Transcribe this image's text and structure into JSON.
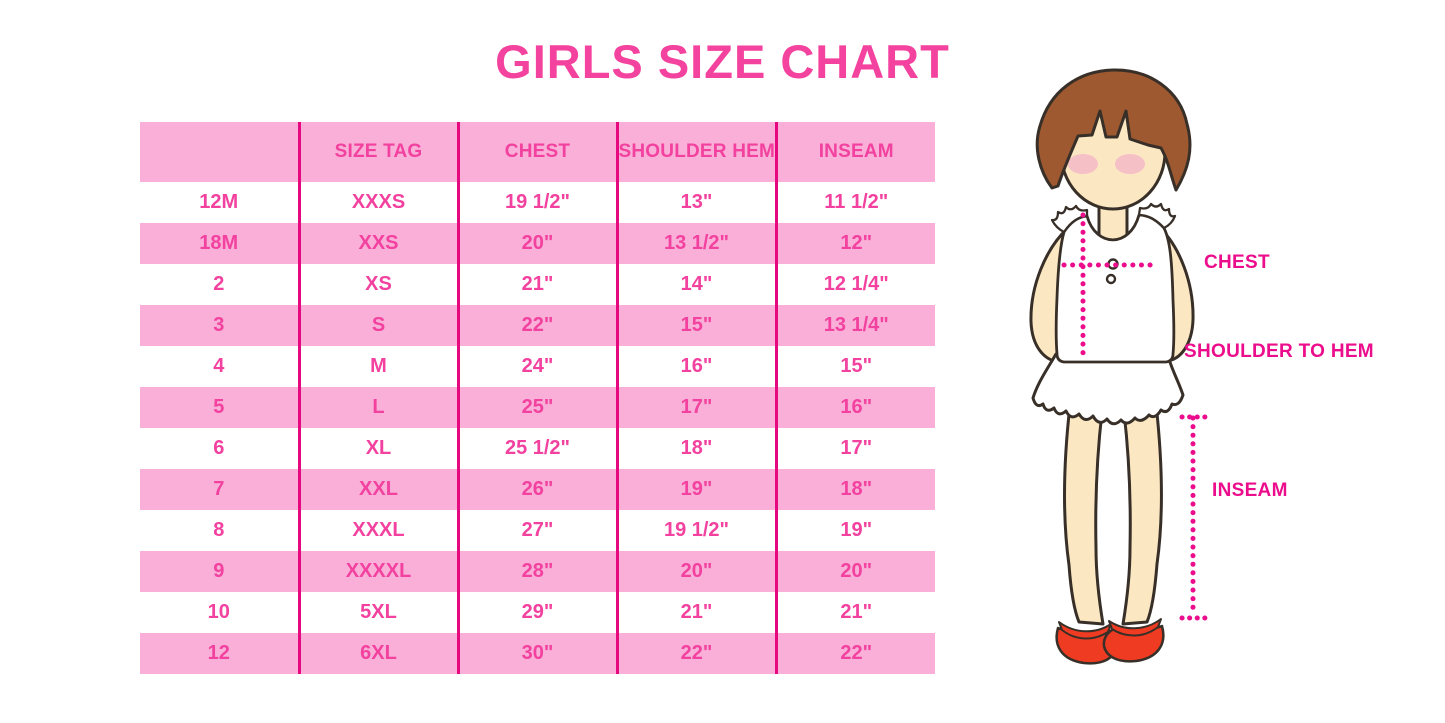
{
  "title": "GIRLS SIZE CHART",
  "colors": {
    "title_pink": "#F4429F",
    "band_pink": "#F9AFD8",
    "text_pink": "#F2419E",
    "line_magenta": "#E5087F",
    "label_magenta": "#EC0D8C",
    "hair_brown": "#9E5931",
    "skin": "#FBE7C2",
    "blush": "#F5B8C8",
    "shoe_red": "#EE3B22",
    "outline": "#383028"
  },
  "table": {
    "columns": [
      "",
      "SIZE TAG",
      "CHEST",
      "SHOULDER HEM",
      "INSEAM"
    ],
    "rows": [
      [
        "12M",
        "XXXS",
        "19 1/2\"",
        "13\"",
        "11 1/2\""
      ],
      [
        "18M",
        "XXS",
        "20\"",
        "13 1/2\"",
        "12\""
      ],
      [
        "2",
        "XS",
        "21\"",
        "14\"",
        "12 1/4\""
      ],
      [
        "3",
        "S",
        "22\"",
        "15\"",
        "13 1/4\""
      ],
      [
        "4",
        "M",
        "24\"",
        "16\"",
        "15\""
      ],
      [
        "5",
        "L",
        "25\"",
        "17\"",
        "16\""
      ],
      [
        "6",
        "XL",
        "25 1/2\"",
        "18\"",
        "17\""
      ],
      [
        "7",
        "XXL",
        "26\"",
        "19\"",
        "18\""
      ],
      [
        "8",
        "XXXL",
        "27\"",
        "19 1/2\"",
        "19\""
      ],
      [
        "9",
        "XXXXL",
        "28\"",
        "20\"",
        "20\""
      ],
      [
        "10",
        "5XL",
        "29\"",
        "21\"",
        "21\""
      ],
      [
        "12",
        "6XL",
        "30\"",
        "22\"",
        "22\""
      ]
    ]
  },
  "diagram": {
    "labels": {
      "chest": "CHEST",
      "shoulder_to_hem": "SHOULDER TO HEM",
      "inseam": "INSEAM"
    }
  }
}
